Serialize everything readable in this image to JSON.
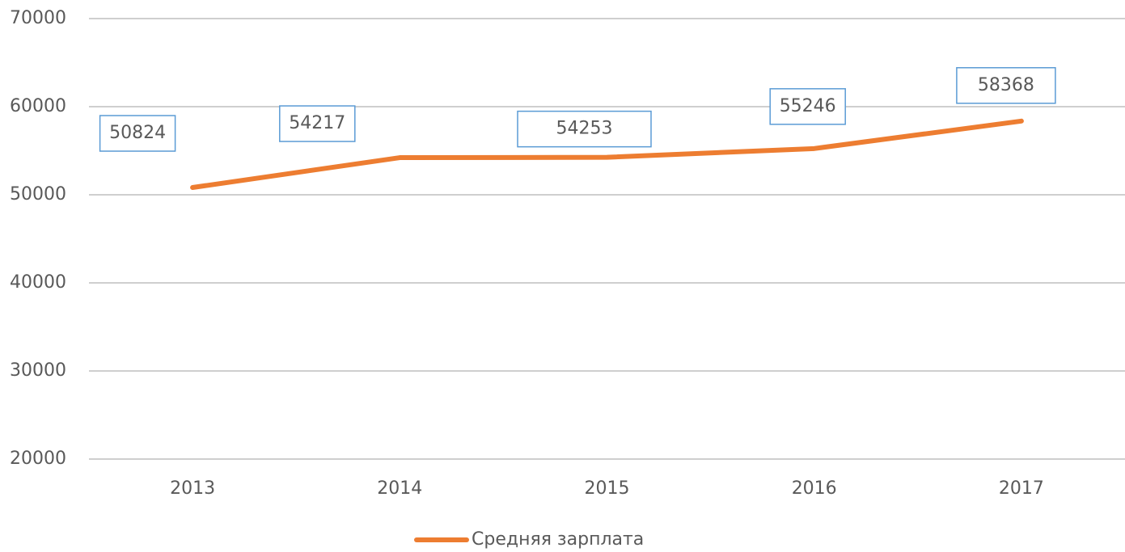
{
  "chart_data": {
    "type": "line",
    "categories": [
      "2013",
      "2014",
      "2015",
      "2016",
      "2017"
    ],
    "series": [
      {
        "name": "Средняя зарплата",
        "color": "#ed7d31",
        "values": [
          50824,
          54217,
          54253,
          55246,
          58368
        ]
      }
    ],
    "ylim": [
      20000,
      70000
    ],
    "yticks": [
      20000,
      30000,
      40000,
      50000,
      60000,
      70000
    ],
    "grid": true,
    "legend": "bottom"
  }
}
